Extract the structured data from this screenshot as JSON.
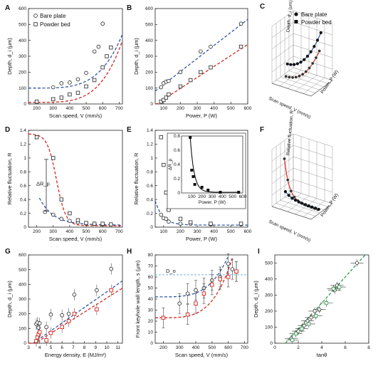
{
  "colors": {
    "blue": "#2f55a4",
    "red": "#d7261e",
    "green": "#2e9a4e",
    "guide": "#6fb6d9",
    "axis": "#222222"
  },
  "chart_data": [
    {
      "panel": "A",
      "type": "scatter",
      "xlabel": "Scan speed, V (mm/s)",
      "ylabel": "Depth, d_i (μm)",
      "xlim": [
        150,
        720
      ],
      "ylim": [
        0,
        600
      ],
      "xticks": [
        200,
        300,
        400,
        500,
        600,
        700
      ],
      "yticks": [
        0,
        100,
        200,
        300,
        400,
        500,
        600
      ],
      "legend": [
        "Bare plate",
        "Powder bed"
      ],
      "legend_position": "top-left",
      "series": [
        {
          "name": "Bare plate",
          "marker": "circle",
          "x": [
            300,
            350,
            400,
            450,
            500,
            550,
            575,
            600
          ],
          "y": [
            105,
            130,
            135,
            155,
            195,
            330,
            360,
            505
          ]
        },
        {
          "name": "Powder bed",
          "marker": "square",
          "x": [
            200,
            300,
            350,
            400,
            450,
            500,
            550,
            600,
            625,
            650
          ],
          "y": [
            15,
            30,
            40,
            60,
            70,
            110,
            150,
            230,
            300,
            355
          ]
        }
      ]
    },
    {
      "panel": "B",
      "type": "scatter",
      "xlabel": "Power, P (W)",
      "ylabel": "Depth, d_i (μm)",
      "xlim": [
        50,
        600
      ],
      "ylim": [
        0,
        600
      ],
      "xticks": [
        100,
        200,
        300,
        400,
        500,
        600
      ],
      "yticks": [
        0,
        100,
        200,
        300,
        400,
        500,
        600
      ],
      "series": [
        {
          "name": "Bare plate",
          "marker": "circle",
          "x": [
            85,
            100,
            115,
            130,
            200,
            320,
            380,
            560
          ],
          "y": [
            105,
            130,
            140,
            145,
            200,
            330,
            360,
            505
          ]
        },
        {
          "name": "Powder bed",
          "marker": "square",
          "x": [
            85,
            100,
            115,
            130,
            200,
            260,
            320,
            380,
            560
          ],
          "y": [
            15,
            25,
            40,
            60,
            110,
            150,
            200,
            230,
            360
          ]
        }
      ]
    },
    {
      "panel": "C",
      "type": "scatter",
      "legend": [
        "Bare plate",
        "Powder bed"
      ],
      "legend_position": "top-right",
      "axis_labels": [
        "Scan speed, V (mm/s)",
        "Power, P (W)",
        "Depth, d_i (μm)"
      ]
    },
    {
      "panel": "D",
      "type": "scatter",
      "xlabel": "Scan speed, V (mm/s)",
      "ylabel": "Relative fluctuation, R",
      "xlim": [
        150,
        720
      ],
      "ylim": [
        0,
        1.4
      ],
      "xticks": [
        200,
        300,
        400,
        500,
        600,
        700
      ],
      "yticks": [
        0,
        0.2,
        0.4,
        0.6,
        0.8,
        1.0,
        1.2,
        1.4
      ],
      "annotation": "ΔR_p",
      "series": [
        {
          "name": "Bare plate",
          "marker": "circle",
          "x": [
            250,
            300,
            350,
            400,
            450,
            500,
            550,
            600,
            650
          ],
          "y": [
            0.22,
            0.18,
            0.12,
            0.09,
            0.07,
            0.05,
            0.05,
            0.04,
            0.04
          ]
        },
        {
          "name": "Powder bed",
          "marker": "square",
          "x": [
            200,
            300,
            350,
            400,
            450,
            500,
            550,
            600,
            650
          ],
          "y": [
            1.3,
            1.0,
            0.4,
            0.2,
            0.1,
            0.06,
            0.05,
            0.05,
            0.04
          ]
        }
      ]
    },
    {
      "panel": "E",
      "type": "scatter",
      "xlabel": "Power, P (W)",
      "ylabel": "Relative fluctuation, R",
      "xlim": [
        50,
        600
      ],
      "ylim": [
        0,
        1.4
      ],
      "xticks": [
        100,
        200,
        300,
        400,
        500,
        600
      ],
      "yticks": [
        0,
        0.2,
        0.4,
        0.6,
        0.8,
        1.0,
        1.2,
        1.4
      ],
      "series": [
        {
          "name": "Bare plate",
          "marker": "circle",
          "x": [
            85,
            100,
            115,
            130,
            200,
            260,
            380,
            560
          ],
          "y": [
            0.18,
            0.13,
            0.12,
            0.08,
            0.05,
            0.05,
            0.04,
            0.04
          ]
        },
        {
          "name": "Powder bed",
          "marker": "square",
          "x": [
            85,
            100,
            115,
            130,
            200,
            260,
            380,
            560
          ],
          "y": [
            1.3,
            0.9,
            0.5,
            0.25,
            0.12,
            0.07,
            0.05,
            0.05
          ]
        }
      ],
      "inset": {
        "xlabel": "Power, P (W)",
        "ylabel": "ΔR_p",
        "xlim": [
          0,
          600
        ],
        "ylim": [
          0,
          0.8
        ],
        "xticks": [
          100,
          200,
          300,
          400,
          500,
          600
        ],
        "yticks": [
          0,
          0.2,
          0.4,
          0.6,
          0.8
        ],
        "x": [
          85,
          100,
          115,
          130,
          200,
          260,
          380,
          560
        ],
        "y": [
          0.78,
          0.32,
          0.23,
          0.12,
          0.08,
          0.04,
          0.01,
          0.01
        ]
      }
    },
    {
      "panel": "F",
      "type": "scatter",
      "axis_labels": [
        "Scan speed, V (mm/s)",
        "Power, P (W)",
        "Relative fluctuation, R"
      ]
    },
    {
      "panel": "G",
      "type": "scatter",
      "xlabel": "Energy density, E (MJ/m²)",
      "ylabel": "Depth, d_i (μm)",
      "xlim": [
        3,
        11.4
      ],
      "ylim": [
        0,
        600
      ],
      "xticks": [
        3,
        4,
        5,
        6,
        7,
        8,
        9,
        10,
        11
      ],
      "yticks": [
        0,
        100,
        200,
        300,
        400,
        500,
        600
      ],
      "series": [
        {
          "name": "Bare plate",
          "marker": "circle",
          "x": [
            3.7,
            3.8,
            3.9,
            4.0,
            4.6,
            5.0,
            6.0,
            6.6,
            7.1,
            9.1,
            10.4
          ],
          "y": [
            130,
            140,
            105,
            135,
            110,
            195,
            190,
            200,
            330,
            360,
            505
          ]
        },
        {
          "name": "Powder bed",
          "marker": "square",
          "x": [
            3.7,
            3.8,
            3.9,
            4.0,
            4.6,
            5.0,
            6.0,
            6.6,
            7.1,
            9.1,
            10.4
          ],
          "y": [
            15,
            40,
            60,
            75,
            20,
            70,
            110,
            150,
            200,
            230,
            360
          ]
        }
      ]
    },
    {
      "panel": "H",
      "type": "scatter",
      "xlabel": "Scan speed, V (mm/s)",
      "ylabel": "Front keyhole wall length, s (μm)",
      "xlim": [
        150,
        720
      ],
      "ylim": [
        0,
        80
      ],
      "xticks": [
        200,
        300,
        400,
        500,
        600,
        700
      ],
      "yticks": [
        0,
        10,
        20,
        30,
        40,
        50,
        60,
        70,
        80
      ],
      "annotation": "D_o",
      "hline": 62,
      "series": [
        {
          "name": "Bare plate",
          "marker": "circle",
          "x": [
            300,
            350,
            400,
            450,
            500,
            550,
            600,
            625,
            650
          ],
          "y": [
            36,
            45,
            48,
            50,
            57,
            60,
            72,
            67,
            65
          ]
        },
        {
          "name": "Powder bed",
          "marker": "square",
          "x": [
            200,
            350,
            400,
            450,
            500,
            550,
            600,
            650
          ],
          "y": [
            23,
            26,
            36,
            45,
            53,
            58,
            60,
            65
          ]
        }
      ]
    },
    {
      "panel": "I",
      "type": "scatter",
      "xlabel": "tanθ",
      "ylabel": "Depth, d_i (μm)",
      "xlim": [
        0,
        8
      ],
      "ylim": [
        0,
        550
      ],
      "xticks": [
        0,
        2,
        4,
        6,
        8
      ],
      "yticks": [
        0,
        100,
        200,
        300,
        400,
        500
      ],
      "series": [
        {
          "name": "Bare plate",
          "marker": "circle",
          "x": [
            1.4,
            2.0,
            2.5,
            2.8,
            3.1,
            3.4,
            3.8,
            5.1,
            5.3,
            7.0
          ],
          "y": [
            30,
            75,
            110,
            140,
            160,
            200,
            210,
            330,
            360,
            500
          ]
        },
        {
          "name": "Powder bed",
          "marker": "square",
          "x": [
            1.5,
            1.8,
            2.3,
            2.9,
            3.5,
            4.4,
            5.0,
            5.5
          ],
          "y": [
            20,
            60,
            90,
            120,
            170,
            250,
            340,
            350
          ]
        }
      ]
    }
  ]
}
